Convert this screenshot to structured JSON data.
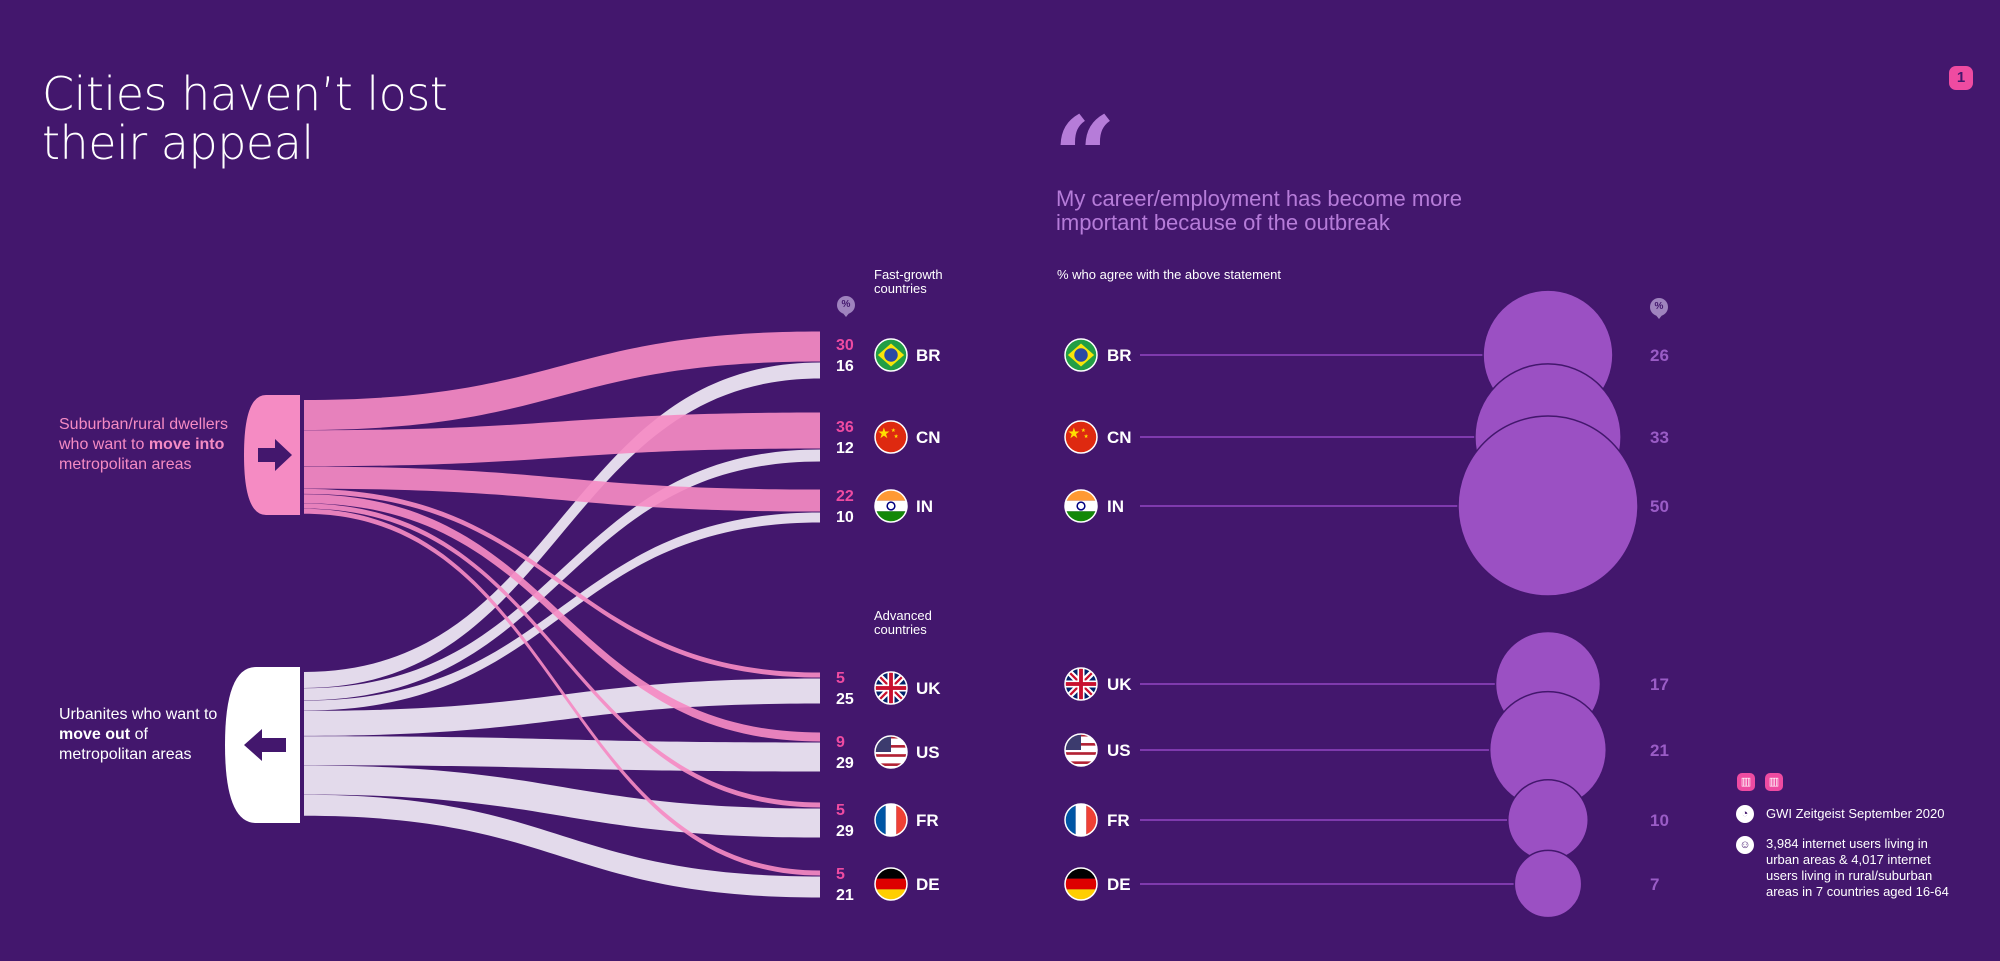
{
  "title": [
    "Cities haven’t lost",
    "their appeal"
  ],
  "page_number": "1",
  "quote_mark": "“",
  "statement": [
    "My career/employment has become more",
    "important because of the outbreak"
  ],
  "subtitle": "% who agree with the above statement",
  "pct_symbol": "%",
  "groups": {
    "fast": [
      "Fast-growth",
      "countries"
    ],
    "advanced": [
      "Advanced",
      "countries"
    ]
  },
  "origins": {
    "suburban": {
      "pre": "Suburban/rural dwellers who want to ",
      "bold": "move into",
      "post": " metropolitan areas"
    },
    "urban": {
      "pre": "Urbanites who want to ",
      "bold": "move out",
      "post": " of metropolitan areas"
    }
  },
  "colors": {
    "background": "#43176d",
    "pink": "#f58bc3",
    "pink_strong": "#ef4ba1",
    "white_flow": "#f1ebf6",
    "bubble": "#9b50c3",
    "bubble_text": "#9a5cc6"
  },
  "legend": {
    "source": "GWI Zeitgeist September 2020",
    "base": [
      "3,984 internet users living in",
      "urban areas & 4,017 internet",
      "users living in rural/suburban",
      "areas in 7 countries aged 16-64"
    ],
    "icons": [
      "chart-icon",
      "chart-icon",
      "clock-icon",
      "people-icon"
    ]
  },
  "chart_data": [
    {
      "type": "sankey",
      "sources": [
        "Suburban/rural dwellers who want to move into metropolitan areas",
        "Urbanites who want to move out of metropolitan areas"
      ],
      "categories": [
        "BR",
        "CN",
        "IN",
        "UK",
        "US",
        "FR",
        "DE"
      ],
      "series": [
        {
          "name": "Suburban/rural dwellers who want to move into metropolitan areas",
          "values": [
            30,
            36,
            22,
            5,
            9,
            5,
            5
          ]
        },
        {
          "name": "Urbanites who want to move out of metropolitan areas",
          "values": [
            16,
            12,
            10,
            25,
            29,
            29,
            21
          ]
        }
      ],
      "unit": "%"
    },
    {
      "type": "bubble",
      "categories": [
        "BR",
        "CN",
        "IN",
        "UK",
        "US",
        "FR",
        "DE"
      ],
      "values": [
        26,
        33,
        50,
        17,
        21,
        10,
        7
      ],
      "unit": "%"
    }
  ]
}
